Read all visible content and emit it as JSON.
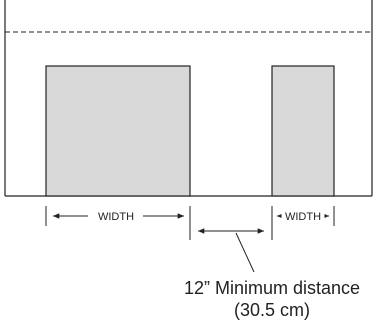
{
  "labels": {
    "width_left": "WIDTH",
    "width_right": "WIDTH",
    "min_distance_line1": "12” Minimum distance",
    "min_distance_line2": "(30.5 cm)"
  },
  "colors": {
    "line": "#222222",
    "panel_fill": "#d9d9d9",
    "background": "#ffffff"
  }
}
